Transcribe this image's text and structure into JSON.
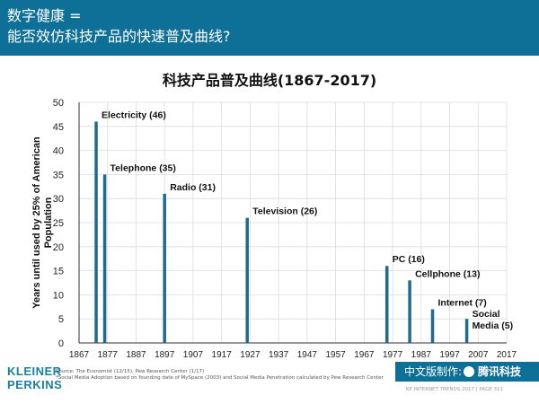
{
  "header": {
    "line1": "数字健康 =",
    "line2": "能否效仿科技产品的快速普及曲线?"
  },
  "chart_data": {
    "type": "bar",
    "title": "科技产品普及曲线(1867-2017)",
    "ylabel": "Years until used by 25% of American Population",
    "ylabel_lines": [
      "Years until used by 25% of American",
      "Population"
    ],
    "xlabel": "",
    "xlim": [
      1867,
      2017
    ],
    "ylim": [
      0,
      50
    ],
    "x_ticks": [
      1867,
      1877,
      1887,
      1897,
      1907,
      1917,
      1927,
      1937,
      1947,
      1957,
      1967,
      1977,
      1987,
      1997,
      2007,
      2017
    ],
    "y_ticks": [
      0,
      5,
      10,
      15,
      20,
      25,
      30,
      35,
      40,
      45,
      50
    ],
    "grid": true,
    "bars": [
      {
        "label": "Electricity (46)",
        "x": 1873,
        "value": 46
      },
      {
        "label": "Telephone (35)",
        "x": 1876,
        "value": 35
      },
      {
        "label": "Radio (31)",
        "x": 1897,
        "value": 31
      },
      {
        "label": "Television (26)",
        "x": 1926,
        "value": 26
      },
      {
        "label": "PC (16)",
        "x": 1975,
        "value": 16
      },
      {
        "label": "Cellphone (13)",
        "x": 1983,
        "value": 13
      },
      {
        "label": "Internet (7)",
        "x": 1991,
        "value": 7
      },
      {
        "label": "Social Media (5)",
        "x": 2003,
        "value": 5,
        "label_lines": [
          "Social",
          "Media (5)"
        ]
      }
    ],
    "colors": {
      "bar": "#1f6b8e",
      "grid": "#dcdcdc",
      "axis": "#333333"
    }
  },
  "footer": {
    "source1": "Source: The Economist (12/15), Pew Research Center (1/17)",
    "source2": "*Social Media Adoption based on founding date of MySpace (2003) and Social Media Penetration calculated by Pew Research Center",
    "logo_line1": "KLEINER",
    "logo_line2": "PERKINS",
    "badge_text": "中文版制作:",
    "badge_brand": "腾讯科技",
    "page_text": "KP INTERNET TRENDS 2017  |  PAGE 311"
  }
}
